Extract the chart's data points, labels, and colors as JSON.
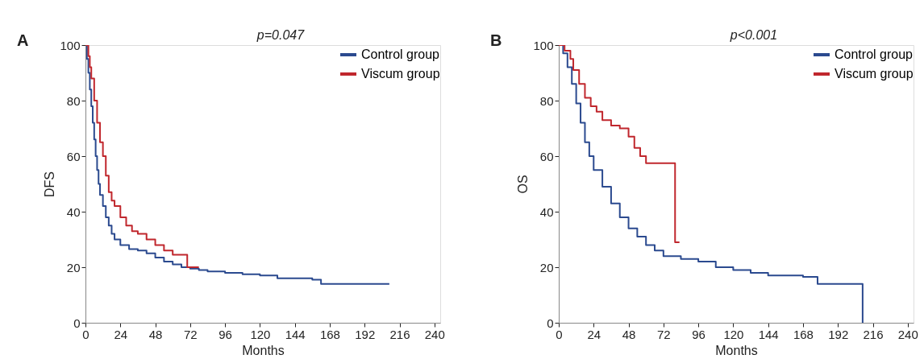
{
  "chart_data": [
    {
      "type": "step",
      "xlabel": "Months",
      "ylabel": "DFS",
      "annotations": [
        "A",
        "p=0.047"
      ],
      "xlim": [
        0,
        244
      ],
      "ylim": [
        0,
        100
      ],
      "xticks": [
        0,
        24,
        48,
        72,
        96,
        120,
        144,
        168,
        192,
        216,
        240
      ],
      "yticks": [
        0,
        20,
        40,
        60,
        80,
        100
      ],
      "grid": false,
      "legend": "top right",
      "line_style": "solid",
      "series": [
        {
          "name": "Control group",
          "color": "#2b4a8f",
          "x": [
            0,
            1,
            2,
            3,
            4,
            5,
            6,
            7,
            8,
            9,
            10,
            12,
            14,
            16,
            18,
            20,
            24,
            30,
            36,
            42,
            48,
            54,
            60,
            66,
            72,
            78,
            84,
            96,
            108,
            120,
            132,
            144,
            156,
            162,
            209
          ],
          "values": [
            100,
            95,
            90,
            84,
            78,
            72,
            66,
            60,
            55,
            50,
            46,
            42,
            38,
            35,
            32,
            30,
            28,
            26.5,
            26,
            25,
            23.5,
            22,
            21,
            20,
            19.5,
            19,
            18.5,
            18,
            17.5,
            17,
            16,
            16,
            15.5,
            14,
            14
          ]
        },
        {
          "name": "Viscum group",
          "color": "#c0272d",
          "x": [
            0,
            2,
            3,
            4,
            6,
            8,
            10,
            12,
            14,
            16,
            18,
            20,
            24,
            28,
            32,
            36,
            42,
            48,
            54,
            60,
            69,
            70,
            78
          ],
          "values": [
            100,
            96,
            92,
            88,
            80,
            72,
            65,
            60,
            53,
            47,
            44,
            42,
            38,
            35,
            33,
            32,
            30,
            28,
            26,
            24.5,
            24.5,
            20,
            20
          ]
        }
      ]
    },
    {
      "type": "step",
      "xlabel": "Months",
      "ylabel": "OS",
      "annotations": [
        "B",
        "p<0.001"
      ],
      "xlim": [
        0,
        244
      ],
      "ylim": [
        0,
        100
      ],
      "xticks": [
        0,
        24,
        48,
        72,
        96,
        120,
        144,
        168,
        192,
        216,
        240
      ],
      "yticks": [
        0,
        20,
        40,
        60,
        80,
        100
      ],
      "grid": false,
      "legend": "top right",
      "line_style": "solid",
      "series": [
        {
          "name": "Control group",
          "color": "#2b4a8f",
          "x": [
            0,
            3,
            6,
            9,
            12,
            15,
            18,
            21,
            24,
            30,
            36,
            42,
            48,
            54,
            60,
            66,
            72,
            84,
            96,
            108,
            120,
            132,
            144,
            168,
            178,
            178,
            209,
            209
          ],
          "values": [
            100,
            97,
            92,
            86,
            79,
            72,
            65,
            60,
            55,
            49,
            43,
            38,
            34,
            31,
            28,
            26,
            24,
            23,
            22,
            20,
            19,
            18,
            17,
            16.5,
            16.5,
            14,
            14,
            0
          ]
        },
        {
          "name": "Viscum group",
          "color": "#c0272d",
          "x": [
            0,
            4,
            8,
            10,
            14,
            18,
            22,
            26,
            30,
            36,
            42,
            48,
            52,
            56,
            60,
            80,
            80,
            83
          ],
          "values": [
            100,
            98,
            95,
            91,
            86,
            81,
            78,
            76,
            73,
            71,
            70,
            67,
            63,
            60,
            57.5,
            57.5,
            29,
            29
          ]
        }
      ]
    }
  ]
}
